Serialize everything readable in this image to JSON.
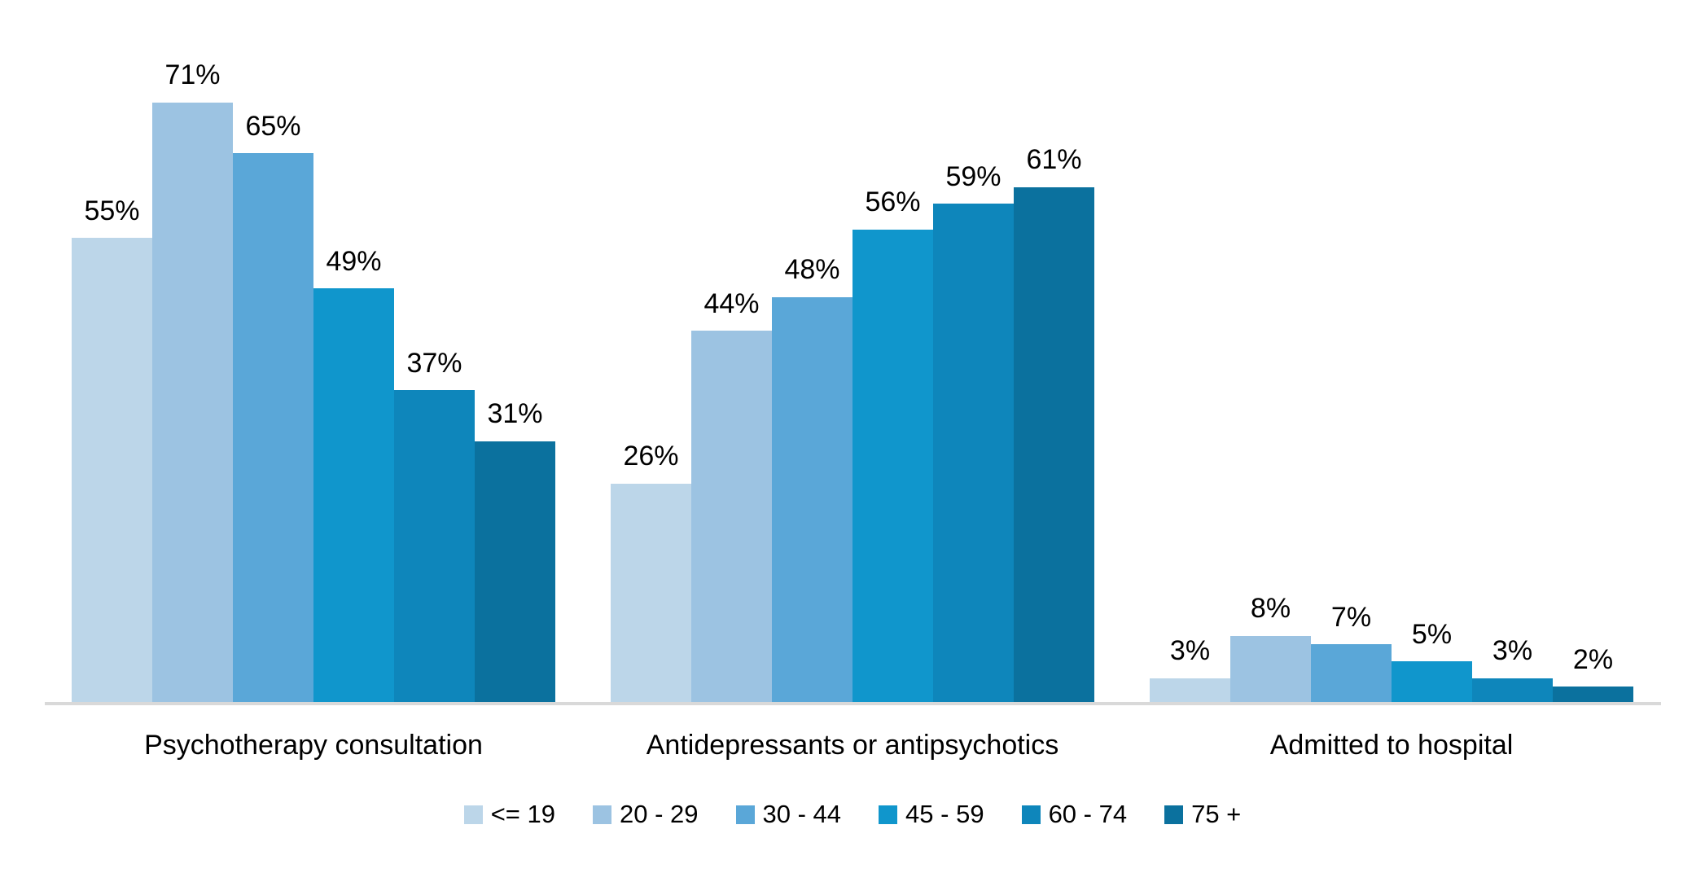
{
  "chart_data": {
    "type": "bar",
    "title": "",
    "categories": [
      "Psychotherapy consultation",
      "Antidepressants or antipsychotics",
      "Admitted to hospital"
    ],
    "series": [
      {
        "name": "<= 19",
        "color": "#BCD6E9",
        "values": [
          55,
          26,
          3
        ]
      },
      {
        "name": "20 - 29",
        "color": "#9CC3E2",
        "values": [
          71,
          44,
          8
        ]
      },
      {
        "name": "30 - 44",
        "color": "#5AA7D8",
        "values": [
          65,
          48,
          7
        ]
      },
      {
        "name": "45 - 59",
        "color": "#1096CC",
        "values": [
          49,
          56,
          5
        ]
      },
      {
        "name": "60 - 74",
        "color": "#0E86BB",
        "values": [
          37,
          59,
          3
        ]
      },
      {
        "name": "75 +",
        "color": "#0B719E",
        "values": [
          31,
          61,
          2
        ]
      }
    ],
    "value_suffix": "%",
    "ylim": [
      0,
      100
    ],
    "grid": false,
    "y_axis_visible": false,
    "x_axis_line_color": "#D9D9D9",
    "legend_position": "bottom",
    "data_label_color": "#000000",
    "background_color": "#FFFFFF"
  }
}
